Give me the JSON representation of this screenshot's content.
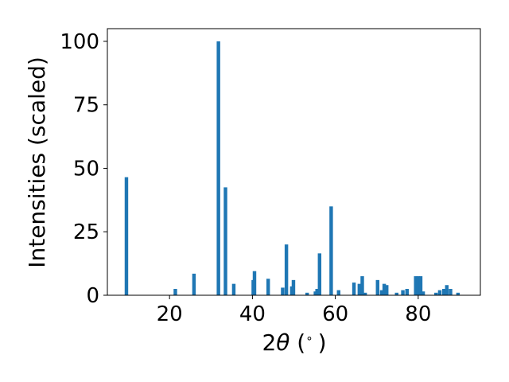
{
  "chart_data": {
    "type": "bar",
    "title": "",
    "xlabel_parts": [
      "2",
      "θ",
      " (",
      "∘",
      ")"
    ],
    "ylabel": "Intensities (scaled)",
    "xlim": [
      5,
      95
    ],
    "ylim": [
      0,
      105
    ],
    "x_ticks": [
      20,
      40,
      60,
      80
    ],
    "y_ticks": [
      0,
      25,
      50,
      75,
      100
    ],
    "bar_color": "#1f77b4",
    "bars": [
      {
        "x": 9.6,
        "y": 46.5
      },
      {
        "x": 21.4,
        "y": 2.5
      },
      {
        "x": 25.9,
        "y": 8.5
      },
      {
        "x": 31.8,
        "y": 100.0
      },
      {
        "x": 33.5,
        "y": 42.5
      },
      {
        "x": 35.5,
        "y": 4.5
      },
      {
        "x": 40.2,
        "y": 6.0
      },
      {
        "x": 40.5,
        "y": 9.5
      },
      {
        "x": 43.8,
        "y": 6.5
      },
      {
        "x": 47.3,
        "y": 3.0
      },
      {
        "x": 48.2,
        "y": 20.0
      },
      {
        "x": 49.5,
        "y": 3.5
      },
      {
        "x": 49.9,
        "y": 6.0
      },
      {
        "x": 53.2,
        "y": 1.0
      },
      {
        "x": 55.2,
        "y": 1.5
      },
      {
        "x": 55.6,
        "y": 2.5
      },
      {
        "x": 56.2,
        "y": 16.5
      },
      {
        "x": 59.0,
        "y": 35.0
      },
      {
        "x": 60.8,
        "y": 2.0
      },
      {
        "x": 64.5,
        "y": 5.0
      },
      {
        "x": 65.8,
        "y": 4.5
      },
      {
        "x": 66.5,
        "y": 7.5
      },
      {
        "x": 67.2,
        "y": 1.0
      },
      {
        "x": 70.2,
        "y": 6.0
      },
      {
        "x": 71.2,
        "y": 2.0
      },
      {
        "x": 71.8,
        "y": 4.5
      },
      {
        "x": 72.4,
        "y": 4.0
      },
      {
        "x": 74.8,
        "y": 1.0
      },
      {
        "x": 76.3,
        "y": 2.0
      },
      {
        "x": 77.3,
        "y": 2.5
      },
      {
        "x": 79.4,
        "y": 7.5
      },
      {
        "x": 80.0,
        "y": 7.5
      },
      {
        "x": 80.6,
        "y": 7.5
      },
      {
        "x": 81.2,
        "y": 1.5
      },
      {
        "x": 84.3,
        "y": 1.0
      },
      {
        "x": 85.2,
        "y": 2.0
      },
      {
        "x": 86.2,
        "y": 2.5
      },
      {
        "x": 86.9,
        "y": 4.0
      },
      {
        "x": 87.8,
        "y": 2.5
      },
      {
        "x": 89.6,
        "y": 1.0
      }
    ]
  }
}
